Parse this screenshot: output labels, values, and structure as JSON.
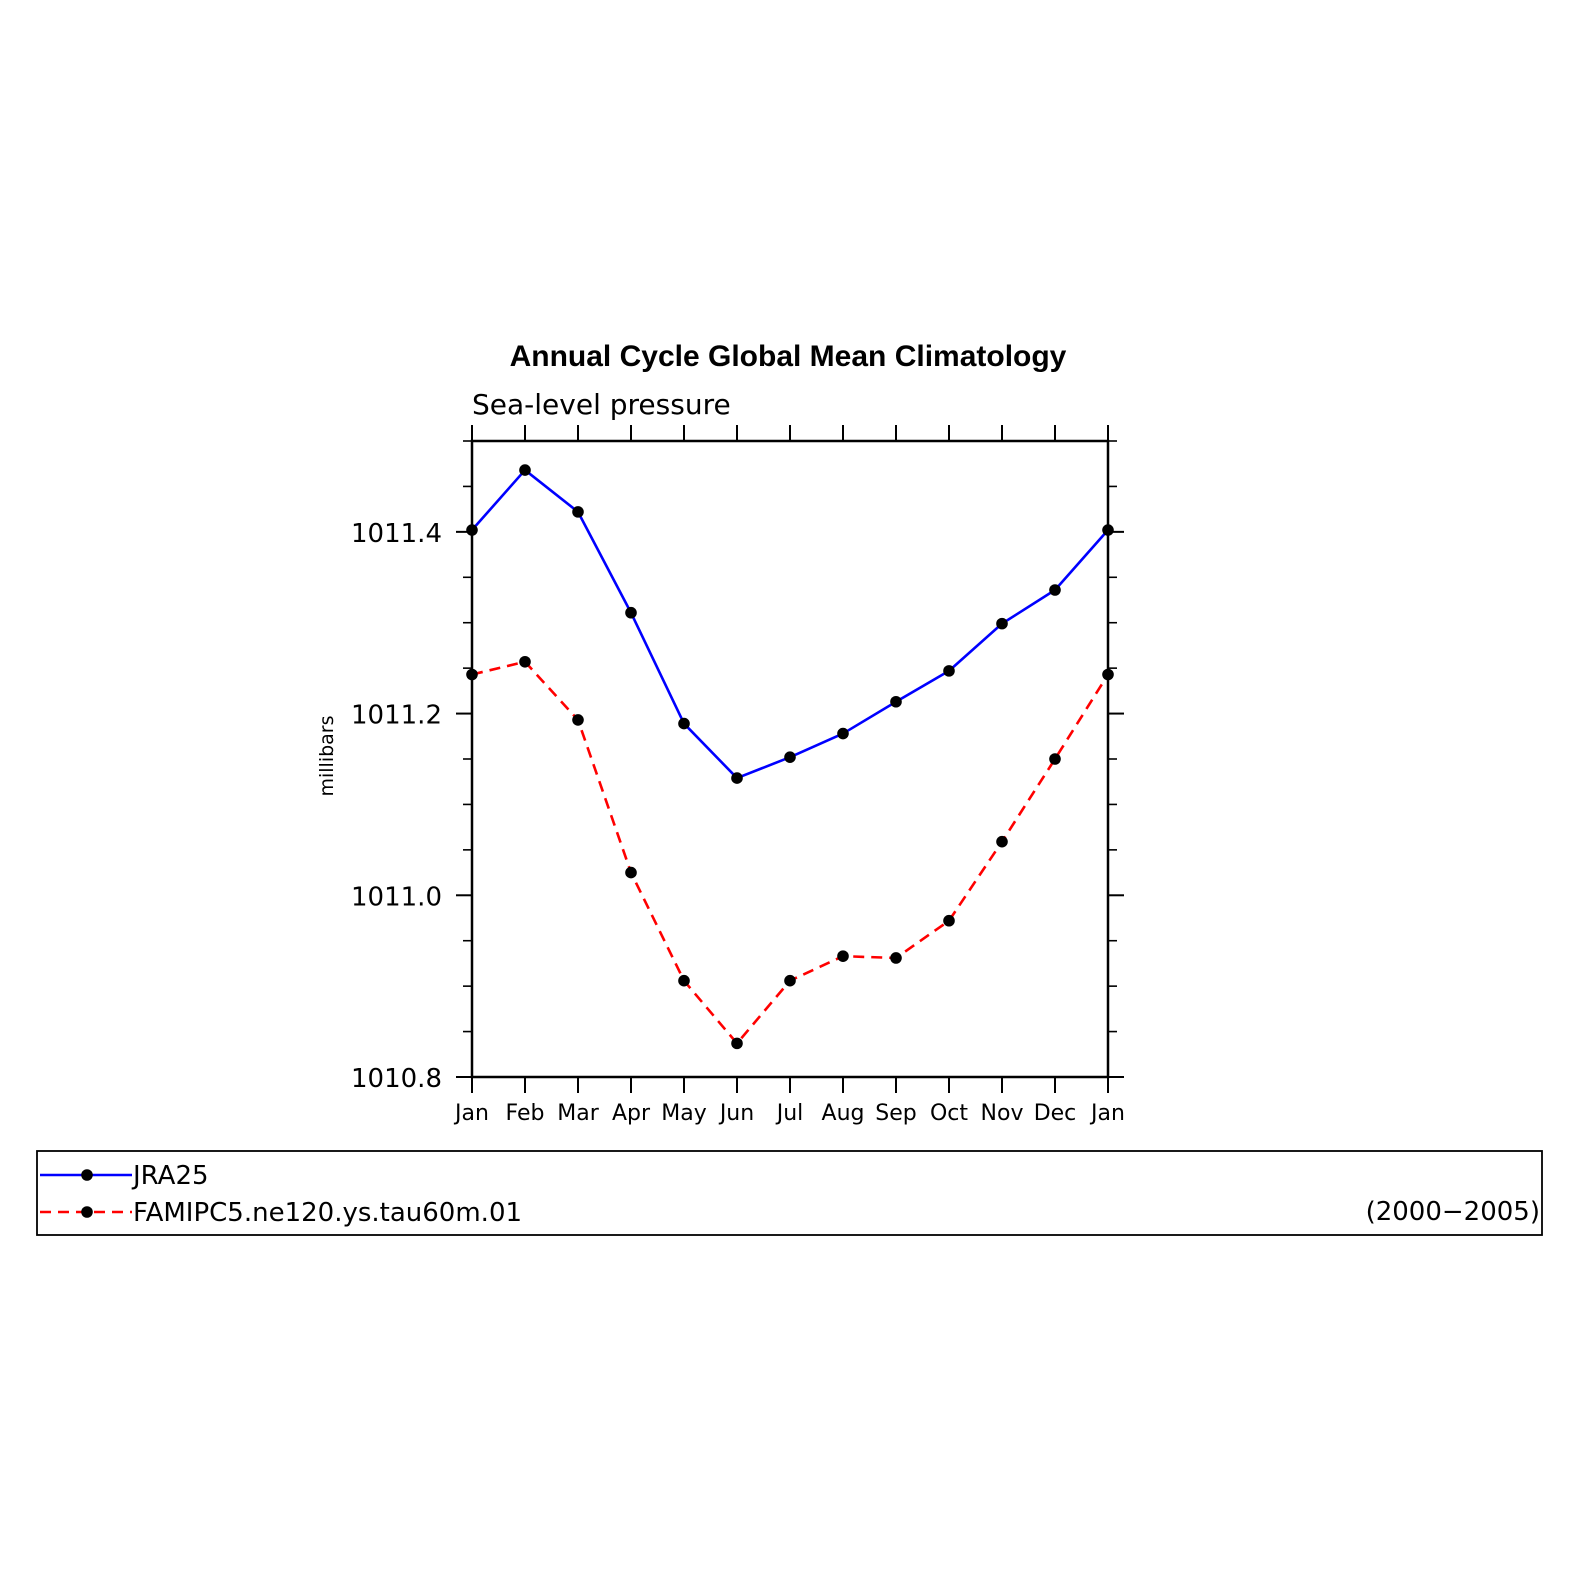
{
  "chart_data": {
    "type": "line",
    "title": "Annual Cycle Global Mean Climatology",
    "subtitle": "Sea-level pressure",
    "ylabel": "millibars",
    "categories": [
      "Jan",
      "Feb",
      "Mar",
      "Apr",
      "May",
      "Jun",
      "Jul",
      "Aug",
      "Sep",
      "Oct",
      "Nov",
      "Dec",
      "Jan"
    ],
    "ylim": [
      1010.8,
      1011.5
    ],
    "yticks": [
      "1010.8",
      "1011.0",
      "1011.2",
      "1011.4"
    ],
    "yminor_step": 0.05,
    "grid": false,
    "legend_placement": "bottom",
    "series": [
      {
        "name": "JRA25",
        "color": "#0000ff",
        "style": "solid",
        "values": [
          1011.402,
          1011.468,
          1011.422,
          1011.311,
          1011.189,
          1011.129,
          1011.152,
          1011.178,
          1011.213,
          1011.247,
          1011.299,
          1011.336,
          1011.402
        ]
      },
      {
        "name": "FAMIPC5.ne120.ys.tau60m.01",
        "color": "#ff0000",
        "style": "dashed",
        "values": [
          1011.243,
          1011.257,
          1011.193,
          1011.025,
          1010.906,
          1010.837,
          1010.906,
          1010.933,
          1010.931,
          1010.972,
          1011.059,
          1011.15,
          1011.243
        ]
      }
    ]
  },
  "legend": {
    "period": "(2000−2005)"
  }
}
